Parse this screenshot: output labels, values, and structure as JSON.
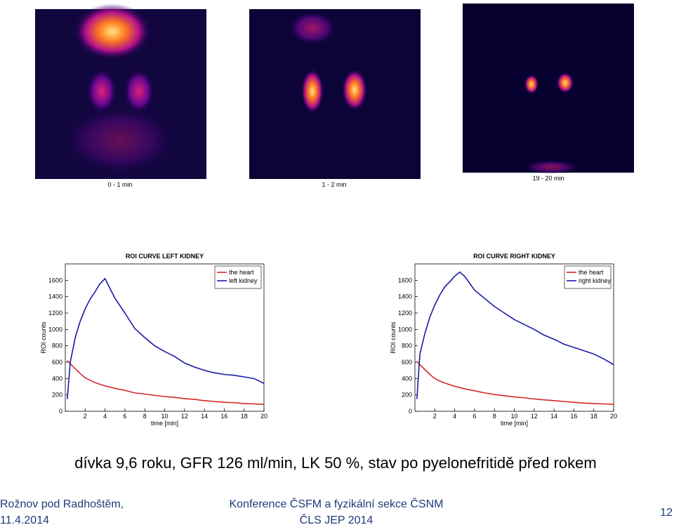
{
  "images": [
    {
      "caption": "0 - 1 min"
    },
    {
      "caption": "1 - 2 min"
    },
    {
      "caption": "19 - 20 min"
    }
  ],
  "chart_data": [
    {
      "type": "line",
      "title": "ROI CURVE LEFT KIDNEY",
      "xlabel": "time [min]",
      "ylabel": "ROI counts",
      "x": [
        0.2,
        0.5,
        1,
        1.5,
        2,
        2.5,
        3,
        3.5,
        4,
        4.5,
        5,
        6,
        7,
        8,
        9,
        10,
        11,
        12,
        13,
        14,
        15,
        16,
        17,
        18,
        19,
        20
      ],
      "series": [
        {
          "name": "the heart",
          "color": "#d62728",
          "values": [
            620,
            580,
            520,
            460,
            410,
            380,
            350,
            330,
            310,
            295,
            280,
            255,
            225,
            210,
            195,
            180,
            170,
            155,
            145,
            130,
            120,
            110,
            105,
            95,
            90,
            85
          ]
        },
        {
          "name": "left kidney",
          "color": "#1a1aa6",
          "values": [
            150,
            600,
            900,
            1100,
            1250,
            1370,
            1460,
            1560,
            1620,
            1500,
            1380,
            1200,
            1010,
            900,
            800,
            730,
            670,
            590,
            540,
            500,
            470,
            450,
            440,
            420,
            400,
            340
          ]
        }
      ],
      "xlim": [
        0,
        20
      ],
      "ylim": [
        0,
        1800
      ],
      "xticks": [
        2,
        4,
        6,
        8,
        10,
        12,
        14,
        16,
        18,
        20
      ],
      "yticks": [
        0,
        200,
        400,
        600,
        800,
        1000,
        1200,
        1400,
        1600
      ],
      "legend": "upper right"
    },
    {
      "type": "line",
      "title": "ROI CURVE RIGHT KIDNEY",
      "xlabel": "time [min]",
      "ylabel": "ROI counts",
      "x": [
        0.2,
        0.5,
        1,
        1.5,
        2,
        2.5,
        3,
        3.5,
        4,
        4.5,
        5,
        6,
        7,
        8,
        9,
        10,
        11,
        12,
        13,
        14,
        15,
        16,
        17,
        18,
        19,
        20
      ],
      "series": [
        {
          "name": "the heart",
          "color": "#d62728",
          "values": [
            610,
            570,
            510,
            450,
            400,
            370,
            345,
            325,
            305,
            290,
            275,
            250,
            225,
            205,
            190,
            175,
            165,
            150,
            140,
            130,
            120,
            110,
            100,
            95,
            90,
            85
          ]
        },
        {
          "name": "right kidney",
          "color": "#1a1aa6",
          "values": [
            150,
            700,
            950,
            1150,
            1300,
            1420,
            1520,
            1580,
            1650,
            1700,
            1650,
            1480,
            1380,
            1280,
            1200,
            1120,
            1060,
            1000,
            930,
            880,
            820,
            780,
            740,
            700,
            640,
            570
          ]
        }
      ],
      "xlim": [
        0,
        20
      ],
      "ylim": [
        0,
        1800
      ],
      "xticks": [
        2,
        4,
        6,
        8,
        10,
        12,
        14,
        16,
        18,
        20
      ],
      "yticks": [
        0,
        200,
        400,
        600,
        800,
        1000,
        1200,
        1400,
        1600
      ],
      "legend": "upper right"
    }
  ],
  "caption": "dívka 9,6 roku, GFR 126 ml/min, LK 50 %, stav po pyelonefritidě před rokem",
  "footer": {
    "place": "Rožnov pod Radhoštěm,",
    "date": "11.4.2014",
    "conference": "Konference ČSFM a fyzikální sekce ČSNM",
    "organizer": "ČLS JEP 2014",
    "page": "12"
  }
}
